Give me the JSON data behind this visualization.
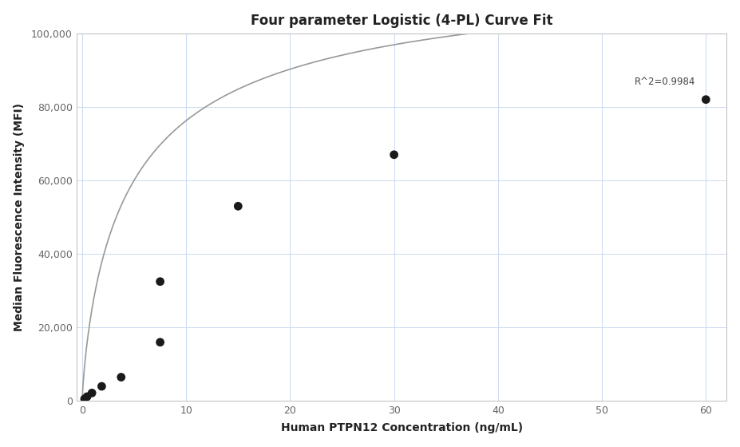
{
  "title": "Four parameter Logistic (4-PL) Curve Fit",
  "xlabel": "Human PTPN12 Concentration (ng/mL)",
  "ylabel": "Median Fluorescence Intensity (MFI)",
  "scatter_x": [
    0.23,
    0.47,
    0.94,
    1.88,
    3.75,
    7.5,
    7.5,
    15.0,
    30.0,
    60.0
  ],
  "scatter_y": [
    600,
    1200,
    2200,
    4000,
    6500,
    16000,
    32500,
    53000,
    67000,
    82000
  ],
  "r_squared": "R^2=0.9984",
  "xlim": [
    -0.5,
    62
  ],
  "ylim": [
    0,
    100000
  ],
  "yticks": [
    0,
    20000,
    40000,
    60000,
    80000,
    100000
  ],
  "ytick_labels": [
    "0",
    "20,000",
    "40,000",
    "60,000",
    "80,000",
    "100,000"
  ],
  "xticks": [
    0,
    10,
    20,
    30,
    40,
    50,
    60
  ],
  "scatter_color": "#1a1a1a",
  "scatter_size": 60,
  "curve_color": "#999999",
  "curve_linewidth": 1.2,
  "bg_color": "#ffffff",
  "grid_color": "#ccd9f0",
  "title_fontsize": 12,
  "label_fontsize": 10,
  "tick_fontsize": 9,
  "annotation_fontsize": 8.5,
  "r2_x": 59,
  "r2_y": 85500,
  "4pl_A": 100,
  "4pl_B": 0.8,
  "4pl_C": 5.0,
  "4pl_D": 120000
}
